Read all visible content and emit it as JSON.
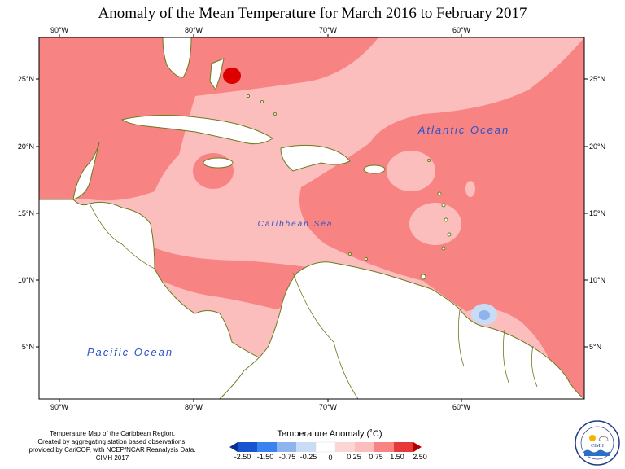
{
  "map": {
    "title": "Anomaly of the Mean Temperature for March 2016 to February 2017",
    "top_ticks": [
      "90°W",
      "80°W",
      "70°W",
      "60°W"
    ],
    "bottom_ticks": [
      "90°W",
      "80°W",
      "70°W",
      "60°W"
    ],
    "left_ticks": [
      "25°N",
      "20°N",
      "15°N",
      "10°N",
      "5°N"
    ],
    "right_ticks": [
      "25°N",
      "20°N",
      "15°N",
      "10°N",
      "5°N"
    ],
    "labels": {
      "atlantic": "Atlantic Ocean",
      "caribbean": "Caribbean Sea",
      "pacific": "Pacific Ocean"
    },
    "colors": {
      "land": "#ffffff",
      "coast": "#6b7a1c",
      "anom_025_075": "#fcbdbd",
      "anom_075_150": "#f78383",
      "anom_150_250": "#dd0000",
      "anom_neg": "#c9dcf5",
      "anom_neg2": "#8fb3ec"
    }
  },
  "legend": {
    "title": "Temperature Anomaly (˚C)",
    "ticks": [
      "-2.50",
      "-1.50",
      "-0.75",
      "-0.25",
      "0",
      "0.25",
      "0.75",
      "1.50",
      "2.50"
    ],
    "colors": [
      "#0a2f8f",
      "#1755d0",
      "#3a82f0",
      "#8fb3ec",
      "#c9dcf5",
      "#ffffff",
      "#fcd5d5",
      "#fcbdbd",
      "#f78383",
      "#e63a3a",
      "#b30000"
    ]
  },
  "credits": {
    "line1": "Temperature Map of the Caribbean Region.",
    "line2": "Created by aggregating station based observations,",
    "line3": "provided by CariCOF, with NCEP/NCAR Reanalysis Data.",
    "line4": "CIMH 2017"
  },
  "logo": {
    "text": "CIMH"
  }
}
